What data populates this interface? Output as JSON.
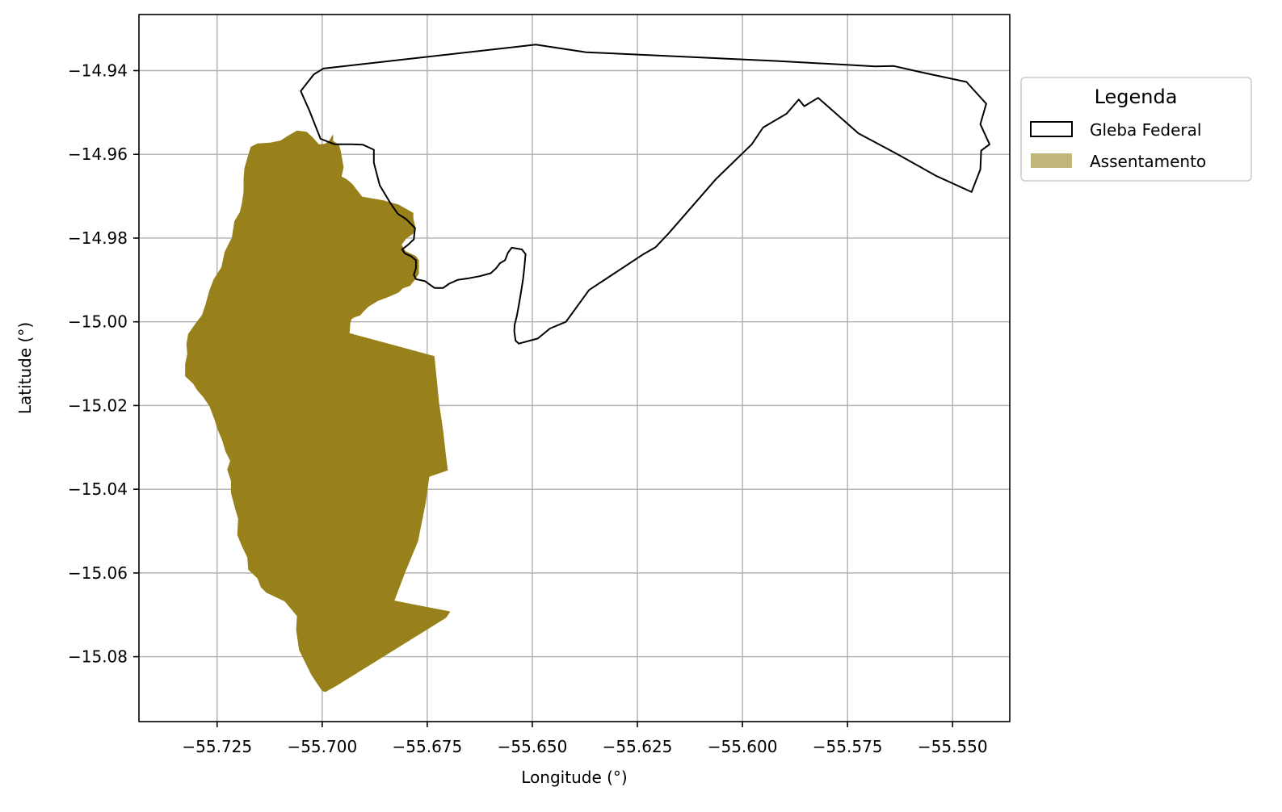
{
  "chart_data": {
    "type": "map",
    "xlabel": "Longitude (°)",
    "ylabel": "Latitude (°)",
    "xlim": [
      -55.7436,
      -55.5364
    ],
    "ylim": [
      -15.0955,
      -14.9266
    ],
    "x_ticks": [
      -55.725,
      -55.7,
      -55.675,
      -55.65,
      -55.625,
      -55.6,
      -55.575,
      -55.55
    ],
    "x_tick_labels": [
      "−55.725",
      "−55.700",
      "−55.675",
      "−55.650",
      "−55.625",
      "−55.600",
      "−55.575",
      "−55.550"
    ],
    "y_ticks": [
      -14.94,
      -14.96,
      -14.98,
      -15.0,
      -15.02,
      -15.04,
      -15.06,
      -15.08
    ],
    "y_tick_labels": [
      "−14.94",
      "−14.96",
      "−14.98",
      "−15.00",
      "−15.02",
      "−15.04",
      "−15.06",
      "−15.08"
    ],
    "grid": true,
    "legend": {
      "title": "Legenda",
      "placement": "outside-top-right",
      "entries": [
        {
          "label": "Gleba Federal",
          "style": "outline",
          "edge_color": "#000000",
          "fill_color": "none"
        },
        {
          "label": "Assentamento",
          "style": "fill",
          "fill_color": "#c2b57a"
        }
      ]
    },
    "layers": [
      {
        "name": "Assentamento",
        "fill_color": "#98801a",
        "polygon": [
          [
            -55.6974,
            -14.9552
          ],
          [
            -55.6974,
            -14.9568
          ],
          [
            -55.696,
            -14.9577
          ],
          [
            -55.6956,
            -14.9591
          ],
          [
            -55.6949,
            -14.9631
          ],
          [
            -55.6954,
            -14.9653
          ],
          [
            -55.6941,
            -14.966
          ],
          [
            -55.6928,
            -14.9671
          ],
          [
            -55.6905,
            -14.9701
          ],
          [
            -55.6854,
            -14.971
          ],
          [
            -55.6818,
            -14.972
          ],
          [
            -55.6783,
            -14.974
          ],
          [
            -55.6783,
            -14.9754
          ],
          [
            -55.6778,
            -14.9774
          ],
          [
            -55.6784,
            -14.979
          ],
          [
            -55.68,
            -14.9801
          ],
          [
            -55.6811,
            -14.9816
          ],
          [
            -55.6802,
            -14.9831
          ],
          [
            -55.6777,
            -14.9843
          ],
          [
            -55.677,
            -14.9853
          ],
          [
            -55.677,
            -14.987
          ],
          [
            -55.677,
            -14.9885
          ],
          [
            -55.6778,
            -14.9898
          ],
          [
            -55.6791,
            -14.9914
          ],
          [
            -55.6808,
            -14.992
          ],
          [
            -55.6818,
            -14.993
          ],
          [
            -55.6843,
            -14.9941
          ],
          [
            -55.6867,
            -14.995
          ],
          [
            -55.689,
            -14.9964
          ],
          [
            -55.6902,
            -14.9976
          ],
          [
            -55.691,
            -14.9985
          ],
          [
            -55.6922,
            -14.9989
          ],
          [
            -55.693,
            -14.9993
          ],
          [
            -55.6933,
            -15.0003
          ],
          [
            -55.6934,
            -15.0017
          ],
          [
            -55.6935,
            -15.0027
          ],
          [
            -55.6733,
            -15.0082
          ],
          [
            -55.6722,
            -15.0193
          ],
          [
            -55.6712,
            -15.0262
          ],
          [
            -55.6706,
            -15.0315
          ],
          [
            -55.6701,
            -15.0355
          ],
          [
            -55.6745,
            -15.037
          ],
          [
            -55.6754,
            -15.0434
          ],
          [
            -55.6772,
            -15.0524
          ],
          [
            -55.6802,
            -15.0597
          ],
          [
            -55.6821,
            -15.0647
          ],
          [
            -55.6828,
            -15.0666
          ],
          [
            -55.6695,
            -15.0692
          ],
          [
            -55.6705,
            -15.0707
          ],
          [
            -55.6965,
            -15.0869
          ],
          [
            -55.6992,
            -15.0884
          ],
          [
            -55.7,
            -15.0882
          ],
          [
            -55.7011,
            -15.0866
          ],
          [
            -55.7026,
            -15.0843
          ],
          [
            -55.7055,
            -15.0784
          ],
          [
            -55.7062,
            -15.0736
          ],
          [
            -55.706,
            -15.0703
          ],
          [
            -55.7089,
            -15.0668
          ],
          [
            -55.7133,
            -15.0647
          ],
          [
            -55.7146,
            -15.0634
          ],
          [
            -55.7154,
            -15.0613
          ],
          [
            -55.7176,
            -15.0592
          ],
          [
            -55.7178,
            -15.0563
          ],
          [
            -55.7191,
            -15.0536
          ],
          [
            -55.7202,
            -15.0509
          ],
          [
            -55.72,
            -15.0471
          ],
          [
            -55.7208,
            -15.0443
          ],
          [
            -55.7217,
            -15.0409
          ],
          [
            -55.7217,
            -15.038
          ],
          [
            -55.7226,
            -15.0353
          ],
          [
            -55.7219,
            -15.0332
          ],
          [
            -55.723,
            -15.031
          ],
          [
            -55.7238,
            -15.0283
          ],
          [
            -55.7248,
            -15.0259
          ],
          [
            -55.7256,
            -15.0234
          ],
          [
            -55.7268,
            -15.0202
          ],
          [
            -55.7283,
            -15.018
          ],
          [
            -55.7297,
            -15.0164
          ],
          [
            -55.7307,
            -15.0148
          ],
          [
            -55.7326,
            -15.013
          ],
          [
            -55.7326,
            -15.0101
          ],
          [
            -55.7321,
            -15.0077
          ],
          [
            -55.7323,
            -15.0053
          ],
          [
            -55.7319,
            -15.0029
          ],
          [
            -55.73,
            -15.0002
          ],
          [
            -55.7286,
            -14.9984
          ],
          [
            -55.7278,
            -14.996
          ],
          [
            -55.7268,
            -14.9924
          ],
          [
            -55.7258,
            -14.9898
          ],
          [
            -55.724,
            -14.987
          ],
          [
            -55.7232,
            -14.9833
          ],
          [
            -55.7215,
            -14.9799
          ],
          [
            -55.7209,
            -14.976
          ],
          [
            -55.7196,
            -14.9738
          ],
          [
            -55.7191,
            -14.9716
          ],
          [
            -55.7187,
            -14.969
          ],
          [
            -55.7187,
            -14.966
          ],
          [
            -55.7185,
            -14.9633
          ],
          [
            -55.7177,
            -14.9605
          ],
          [
            -55.717,
            -14.9582
          ],
          [
            -55.7154,
            -14.9574
          ],
          [
            -55.7124,
            -14.9572
          ],
          [
            -55.7099,
            -14.9567
          ],
          [
            -55.7082,
            -14.9556
          ],
          [
            -55.706,
            -14.9543
          ],
          [
            -55.7037,
            -14.9546
          ],
          [
            -55.7022,
            -14.956
          ],
          [
            -55.7008,
            -14.9576
          ],
          [
            -55.6994,
            -14.9575
          ],
          [
            -55.6984,
            -14.9568
          ],
          [
            -55.6974,
            -14.9552
          ]
        ]
      },
      {
        "name": "Gleba Federal",
        "edge_color": "#000000",
        "fill_color": "none",
        "polygon": [
          [
            -55.6492,
            -14.9338
          ],
          [
            -55.6372,
            -14.9356
          ],
          [
            -55.5916,
            -14.9377
          ],
          [
            -55.5684,
            -14.939
          ],
          [
            -55.564,
            -14.9389
          ],
          [
            -55.5569,
            -14.9405
          ],
          [
            -55.5467,
            -14.9427
          ],
          [
            -55.542,
            -14.9479
          ],
          [
            -55.5434,
            -14.9528
          ],
          [
            -55.5412,
            -14.9576
          ],
          [
            -55.5432,
            -14.9591
          ],
          [
            -55.5434,
            -14.9636
          ],
          [
            -55.5455,
            -14.969
          ],
          [
            -55.5538,
            -14.9652
          ],
          [
            -55.5634,
            -14.9598
          ],
          [
            -55.5724,
            -14.955
          ],
          [
            -55.582,
            -14.9465
          ],
          [
            -55.5853,
            -14.9485
          ],
          [
            -55.5866,
            -14.9469
          ],
          [
            -55.5895,
            -14.9503
          ],
          [
            -55.5951,
            -14.9536
          ],
          [
            -55.5978,
            -14.9576
          ],
          [
            -55.6063,
            -14.9659
          ],
          [
            -55.6175,
            -14.9788
          ],
          [
            -55.6207,
            -14.9822
          ],
          [
            -55.6235,
            -14.9838
          ],
          [
            -55.6365,
            -14.9924
          ],
          [
            -55.642,
            -15.0
          ],
          [
            -55.6458,
            -15.0016
          ],
          [
            -55.6487,
            -15.004
          ],
          [
            -55.6532,
            -15.0052
          ],
          [
            -55.654,
            -15.0045
          ],
          [
            -55.6543,
            -15.0022
          ],
          [
            -55.6542,
            -15.0007
          ],
          [
            -55.6537,
            -14.9987
          ],
          [
            -55.6532,
            -14.996
          ],
          [
            -55.6527,
            -14.993
          ],
          [
            -55.6522,
            -14.9898
          ],
          [
            -55.6519,
            -14.987
          ],
          [
            -55.6516,
            -14.9838
          ],
          [
            -55.6525,
            -14.9827
          ],
          [
            -55.6549,
            -14.9823
          ],
          [
            -55.6558,
            -14.9835
          ],
          [
            -55.6565,
            -14.9853
          ],
          [
            -55.6577,
            -14.986
          ],
          [
            -55.6586,
            -14.9872
          ],
          [
            -55.6599,
            -14.9884
          ],
          [
            -55.6625,
            -14.9891
          ],
          [
            -55.6651,
            -14.9896
          ],
          [
            -55.6678,
            -14.99
          ],
          [
            -55.6698,
            -14.9909
          ],
          [
            -55.6712,
            -14.9919
          ],
          [
            -55.6733,
            -14.9919
          ],
          [
            -55.6755,
            -14.9903
          ],
          [
            -55.6777,
            -14.9898
          ],
          [
            -55.6782,
            -14.9888
          ],
          [
            -55.6777,
            -14.9872
          ],
          [
            -55.6777,
            -14.9853
          ],
          [
            -55.6789,
            -14.9843
          ],
          [
            -55.6803,
            -14.9837
          ],
          [
            -55.681,
            -14.9827
          ],
          [
            -55.6797,
            -14.9817
          ],
          [
            -55.6782,
            -14.9803
          ],
          [
            -55.6781,
            -14.9792
          ],
          [
            -55.6779,
            -14.9776
          ],
          [
            -55.68,
            -14.9755
          ],
          [
            -55.682,
            -14.9742
          ],
          [
            -55.6838,
            -14.9716
          ],
          [
            -55.6863,
            -14.9674
          ],
          [
            -55.6877,
            -14.962
          ],
          [
            -55.6877,
            -14.9589
          ],
          [
            -55.6903,
            -14.9577
          ],
          [
            -55.693,
            -14.9576
          ],
          [
            -55.697,
            -14.9576
          ],
          [
            -55.7004,
            -14.9563
          ],
          [
            -55.7031,
            -14.9494
          ],
          [
            -55.7051,
            -14.9449
          ],
          [
            -55.702,
            -14.9409
          ],
          [
            -55.6997,
            -14.9395
          ],
          [
            -55.6492,
            -14.9338
          ]
        ]
      }
    ]
  }
}
